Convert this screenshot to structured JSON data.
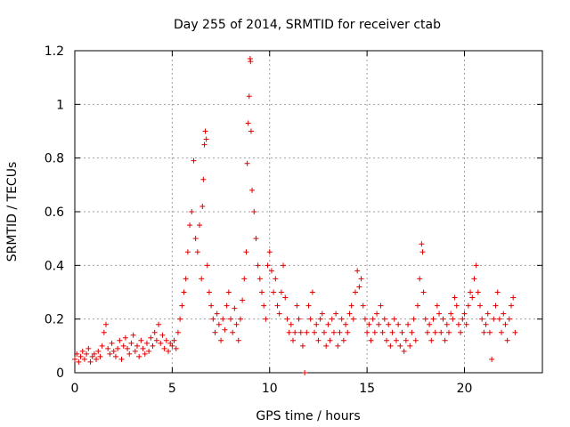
{
  "chart_data": {
    "type": "scatter",
    "title": "Day 255 of 2014, SRMTID for receiver ctab",
    "xlabel": "GPS time / hours",
    "ylabel": "SRMTID / TECUs",
    "xlim": [
      0,
      24
    ],
    "ylim": [
      0,
      1.2
    ],
    "xticks": [
      0,
      5,
      10,
      15,
      20
    ],
    "xtick_labels": [
      "0",
      "5",
      "10",
      "15",
      "20"
    ],
    "yticks": [
      0,
      0.2,
      0.4,
      0.6,
      0.8,
      1.0,
      1.2
    ],
    "ytick_labels": [
      "0",
      "0.2",
      "0.4",
      "0.6",
      "0.8",
      "1",
      "1.2"
    ],
    "grid": true,
    "marker": "+",
    "color": "#e00000",
    "series": [
      {
        "name": "SRMTID",
        "points": [
          [
            0.0,
            0.05
          ],
          [
            0.1,
            0.07
          ],
          [
            0.2,
            0.04
          ],
          [
            0.3,
            0.06
          ],
          [
            0.4,
            0.08
          ],
          [
            0.5,
            0.05
          ],
          [
            0.6,
            0.07
          ],
          [
            0.7,
            0.09
          ],
          [
            0.8,
            0.04
          ],
          [
            0.9,
            0.06
          ],
          [
            1.0,
            0.07
          ],
          [
            1.1,
            0.05
          ],
          [
            1.2,
            0.08
          ],
          [
            1.3,
            0.06
          ],
          [
            1.4,
            0.1
          ],
          [
            1.5,
            0.15
          ],
          [
            1.6,
            0.18
          ],
          [
            1.7,
            0.09
          ],
          [
            1.8,
            0.07
          ],
          [
            1.9,
            0.11
          ],
          [
            2.0,
            0.08
          ],
          [
            2.1,
            0.06
          ],
          [
            2.2,
            0.09
          ],
          [
            2.3,
            0.12
          ],
          [
            2.4,
            0.05
          ],
          [
            2.5,
            0.1
          ],
          [
            2.6,
            0.13
          ],
          [
            2.7,
            0.09
          ],
          [
            2.8,
            0.07
          ],
          [
            2.9,
            0.11
          ],
          [
            3.0,
            0.14
          ],
          [
            3.1,
            0.08
          ],
          [
            3.2,
            0.1
          ],
          [
            3.3,
            0.06
          ],
          [
            3.4,
            0.12
          ],
          [
            3.5,
            0.09
          ],
          [
            3.6,
            0.07
          ],
          [
            3.7,
            0.11
          ],
          [
            3.8,
            0.08
          ],
          [
            3.9,
            0.13
          ],
          [
            4.0,
            0.1
          ],
          [
            4.1,
            0.15
          ],
          [
            4.2,
            0.12
          ],
          [
            4.3,
            0.18
          ],
          [
            4.4,
            0.11
          ],
          [
            4.5,
            0.14
          ],
          [
            4.6,
            0.09
          ],
          [
            4.7,
            0.12
          ],
          [
            4.8,
            0.08
          ],
          [
            4.9,
            0.11
          ],
          [
            5.0,
            0.1
          ],
          [
            5.1,
            0.12
          ],
          [
            5.2,
            0.09
          ],
          [
            5.3,
            0.15
          ],
          [
            5.4,
            0.2
          ],
          [
            5.5,
            0.25
          ],
          [
            5.6,
            0.3
          ],
          [
            5.7,
            0.35
          ],
          [
            5.8,
            0.45
          ],
          [
            5.9,
            0.55
          ],
          [
            6.0,
            0.6
          ],
          [
            6.1,
            0.79
          ],
          [
            6.2,
            0.5
          ],
          [
            6.3,
            0.45
          ],
          [
            6.4,
            0.55
          ],
          [
            6.5,
            0.35
          ],
          [
            6.55,
            0.62
          ],
          [
            6.6,
            0.72
          ],
          [
            6.65,
            0.85
          ],
          [
            6.7,
            0.9
          ],
          [
            6.75,
            0.87
          ],
          [
            6.8,
            0.4
          ],
          [
            6.9,
            0.3
          ],
          [
            7.0,
            0.25
          ],
          [
            7.1,
            0.2
          ],
          [
            7.2,
            0.15
          ],
          [
            7.3,
            0.22
          ],
          [
            7.4,
            0.18
          ],
          [
            7.5,
            0.12
          ],
          [
            7.6,
            0.2
          ],
          [
            7.7,
            0.16
          ],
          [
            7.8,
            0.25
          ],
          [
            7.9,
            0.3
          ],
          [
            8.0,
            0.2
          ],
          [
            8.1,
            0.15
          ],
          [
            8.2,
            0.24
          ],
          [
            8.3,
            0.18
          ],
          [
            8.4,
            0.12
          ],
          [
            8.5,
            0.2
          ],
          [
            8.6,
            0.27
          ],
          [
            8.7,
            0.35
          ],
          [
            8.8,
            0.45
          ],
          [
            8.85,
            0.78
          ],
          [
            8.9,
            0.93
          ],
          [
            8.95,
            1.03
          ],
          [
            9.0,
            1.17
          ],
          [
            9.02,
            1.16
          ],
          [
            9.05,
            0.9
          ],
          [
            9.1,
            0.68
          ],
          [
            9.2,
            0.6
          ],
          [
            9.3,
            0.5
          ],
          [
            9.4,
            0.4
          ],
          [
            9.5,
            0.35
          ],
          [
            9.6,
            0.3
          ],
          [
            9.7,
            0.25
          ],
          [
            9.8,
            0.2
          ],
          [
            9.9,
            0.4
          ],
          [
            10.0,
            0.45
          ],
          [
            10.1,
            0.38
          ],
          [
            10.2,
            0.3
          ],
          [
            10.3,
            0.35
          ],
          [
            10.4,
            0.25
          ],
          [
            10.5,
            0.22
          ],
          [
            10.6,
            0.3
          ],
          [
            10.7,
            0.4
          ],
          [
            10.8,
            0.28
          ],
          [
            10.9,
            0.2
          ],
          [
            11.0,
            0.15
          ],
          [
            11.1,
            0.18
          ],
          [
            11.2,
            0.12
          ],
          [
            11.3,
            0.15
          ],
          [
            11.4,
            0.25
          ],
          [
            11.5,
            0.2
          ],
          [
            11.6,
            0.15
          ],
          [
            11.7,
            0.1
          ],
          [
            11.8,
            0.0
          ],
          [
            11.9,
            0.15
          ],
          [
            12.0,
            0.25
          ],
          [
            12.1,
            0.2
          ],
          [
            12.2,
            0.3
          ],
          [
            12.3,
            0.15
          ],
          [
            12.4,
            0.18
          ],
          [
            12.5,
            0.12
          ],
          [
            12.6,
            0.2
          ],
          [
            12.7,
            0.22
          ],
          [
            12.8,
            0.15
          ],
          [
            12.9,
            0.1
          ],
          [
            13.0,
            0.18
          ],
          [
            13.1,
            0.12
          ],
          [
            13.2,
            0.2
          ],
          [
            13.3,
            0.15
          ],
          [
            13.4,
            0.22
          ],
          [
            13.5,
            0.1
          ],
          [
            13.6,
            0.15
          ],
          [
            13.7,
            0.2
          ],
          [
            13.8,
            0.12
          ],
          [
            13.9,
            0.18
          ],
          [
            14.0,
            0.15
          ],
          [
            14.1,
            0.22
          ],
          [
            14.2,
            0.25
          ],
          [
            14.3,
            0.2
          ],
          [
            14.4,
            0.3
          ],
          [
            14.5,
            0.38
          ],
          [
            14.6,
            0.32
          ],
          [
            14.7,
            0.35
          ],
          [
            14.8,
            0.25
          ],
          [
            14.9,
            0.2
          ],
          [
            15.0,
            0.15
          ],
          [
            15.1,
            0.18
          ],
          [
            15.2,
            0.12
          ],
          [
            15.3,
            0.2
          ],
          [
            15.4,
            0.15
          ],
          [
            15.5,
            0.22
          ],
          [
            15.6,
            0.18
          ],
          [
            15.7,
            0.25
          ],
          [
            15.8,
            0.15
          ],
          [
            15.9,
            0.2
          ],
          [
            16.0,
            0.12
          ],
          [
            16.1,
            0.18
          ],
          [
            16.2,
            0.1
          ],
          [
            16.3,
            0.15
          ],
          [
            16.4,
            0.2
          ],
          [
            16.5,
            0.12
          ],
          [
            16.6,
            0.18
          ],
          [
            16.7,
            0.1
          ],
          [
            16.8,
            0.15
          ],
          [
            16.9,
            0.08
          ],
          [
            17.0,
            0.12
          ],
          [
            17.1,
            0.18
          ],
          [
            17.2,
            0.1
          ],
          [
            17.3,
            0.15
          ],
          [
            17.4,
            0.2
          ],
          [
            17.5,
            0.12
          ],
          [
            17.6,
            0.25
          ],
          [
            17.7,
            0.35
          ],
          [
            17.8,
            0.48
          ],
          [
            17.85,
            0.45
          ],
          [
            17.9,
            0.3
          ],
          [
            18.0,
            0.2
          ],
          [
            18.1,
            0.15
          ],
          [
            18.2,
            0.18
          ],
          [
            18.3,
            0.12
          ],
          [
            18.4,
            0.2
          ],
          [
            18.5,
            0.15
          ],
          [
            18.6,
            0.25
          ],
          [
            18.7,
            0.22
          ],
          [
            18.8,
            0.15
          ],
          [
            18.9,
            0.2
          ],
          [
            19.0,
            0.12
          ],
          [
            19.1,
            0.18
          ],
          [
            19.2,
            0.15
          ],
          [
            19.3,
            0.22
          ],
          [
            19.4,
            0.2
          ],
          [
            19.5,
            0.28
          ],
          [
            19.6,
            0.25
          ],
          [
            19.7,
            0.18
          ],
          [
            19.8,
            0.15
          ],
          [
            19.9,
            0.2
          ],
          [
            20.0,
            0.22
          ],
          [
            20.1,
            0.18
          ],
          [
            20.2,
            0.25
          ],
          [
            20.3,
            0.3
          ],
          [
            20.4,
            0.28
          ],
          [
            20.5,
            0.35
          ],
          [
            20.6,
            0.4
          ],
          [
            20.7,
            0.3
          ],
          [
            20.8,
            0.25
          ],
          [
            20.9,
            0.2
          ],
          [
            21.0,
            0.15
          ],
          [
            21.1,
            0.18
          ],
          [
            21.2,
            0.22
          ],
          [
            21.3,
            0.15
          ],
          [
            21.4,
            0.05
          ],
          [
            21.5,
            0.2
          ],
          [
            21.6,
            0.25
          ],
          [
            21.7,
            0.3
          ],
          [
            21.8,
            0.2
          ],
          [
            21.9,
            0.15
          ],
          [
            22.0,
            0.22
          ],
          [
            22.1,
            0.18
          ],
          [
            22.2,
            0.12
          ],
          [
            22.3,
            0.2
          ],
          [
            22.4,
            0.25
          ],
          [
            22.5,
            0.28
          ],
          [
            22.6,
            0.15
          ]
        ]
      }
    ]
  }
}
